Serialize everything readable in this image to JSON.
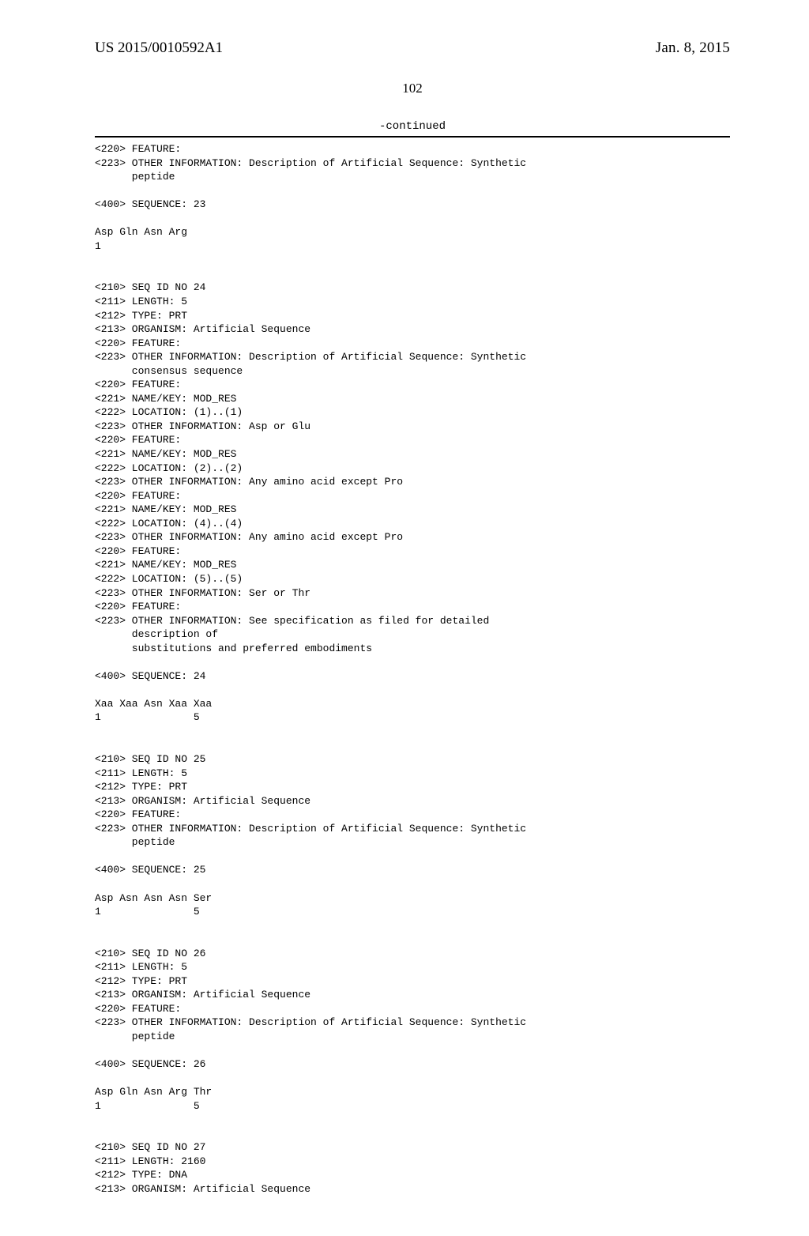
{
  "header": {
    "pub_number": "US 2015/0010592A1",
    "pub_date": "Jan. 8, 2015"
  },
  "page_number": "102",
  "continued_label": "-continued",
  "sequences": [
    {
      "lines": [
        "<220> FEATURE:",
        "<223> OTHER INFORMATION: Description of Artificial Sequence: Synthetic",
        "      peptide",
        "",
        "<400> SEQUENCE: 23",
        "",
        "Asp Gln Asn Arg",
        "1",
        "",
        "",
        "<210> SEQ ID NO 24",
        "<211> LENGTH: 5",
        "<212> TYPE: PRT",
        "<213> ORGANISM: Artificial Sequence",
        "<220> FEATURE:",
        "<223> OTHER INFORMATION: Description of Artificial Sequence: Synthetic",
        "      consensus sequence",
        "<220> FEATURE:",
        "<221> NAME/KEY: MOD_RES",
        "<222> LOCATION: (1)..(1)",
        "<223> OTHER INFORMATION: Asp or Glu",
        "<220> FEATURE:",
        "<221> NAME/KEY: MOD_RES",
        "<222> LOCATION: (2)..(2)",
        "<223> OTHER INFORMATION: Any amino acid except Pro",
        "<220> FEATURE:",
        "<221> NAME/KEY: MOD_RES",
        "<222> LOCATION: (4)..(4)",
        "<223> OTHER INFORMATION: Any amino acid except Pro",
        "<220> FEATURE:",
        "<221> NAME/KEY: MOD_RES",
        "<222> LOCATION: (5)..(5)",
        "<223> OTHER INFORMATION: Ser or Thr",
        "<220> FEATURE:",
        "<223> OTHER INFORMATION: See specification as filed for detailed",
        "      description of",
        "      substitutions and preferred embodiments",
        "",
        "<400> SEQUENCE: 24",
        "",
        "Xaa Xaa Asn Xaa Xaa",
        "1               5",
        "",
        "",
        "<210> SEQ ID NO 25",
        "<211> LENGTH: 5",
        "<212> TYPE: PRT",
        "<213> ORGANISM: Artificial Sequence",
        "<220> FEATURE:",
        "<223> OTHER INFORMATION: Description of Artificial Sequence: Synthetic",
        "      peptide",
        "",
        "<400> SEQUENCE: 25",
        "",
        "Asp Asn Asn Asn Ser",
        "1               5",
        "",
        "",
        "<210> SEQ ID NO 26",
        "<211> LENGTH: 5",
        "<212> TYPE: PRT",
        "<213> ORGANISM: Artificial Sequence",
        "<220> FEATURE:",
        "<223> OTHER INFORMATION: Description of Artificial Sequence: Synthetic",
        "      peptide",
        "",
        "<400> SEQUENCE: 26",
        "",
        "Asp Gln Asn Arg Thr",
        "1               5",
        "",
        "",
        "<210> SEQ ID NO 27",
        "<211> LENGTH: 2160",
        "<212> TYPE: DNA",
        "<213> ORGANISM: Artificial Sequence"
      ]
    }
  ]
}
